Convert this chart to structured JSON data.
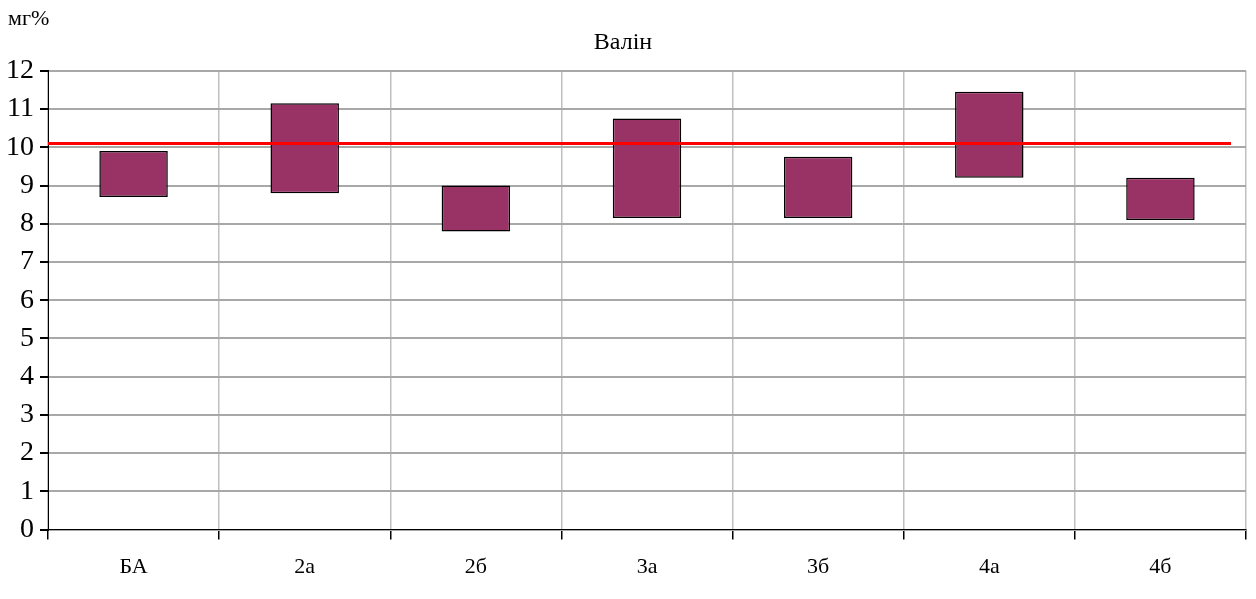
{
  "chart_data": {
    "type": "bar",
    "title": "Валін",
    "ylabel": "мг%",
    "categories": [
      "БА",
      "2а",
      "2б",
      "3а",
      "3б",
      "4а",
      "4б"
    ],
    "values": [
      1.2,
      2.35,
      1.2,
      2.6,
      1.6,
      2.25,
      1.1
    ],
    "base": [
      8.7,
      8.8,
      7.8,
      8.15,
      8.15,
      9.2,
      8.1
    ],
    "color": "#993366",
    "ylim": [
      0,
      12
    ],
    "yticks": [
      0,
      1,
      2,
      3,
      4,
      5,
      6,
      7,
      8,
      9,
      10,
      11,
      12
    ],
    "ref_lines": [
      {
        "axis": "y",
        "value": 10.1,
        "color": "#ff0000"
      }
    ],
    "grid": true,
    "legend": false
  }
}
